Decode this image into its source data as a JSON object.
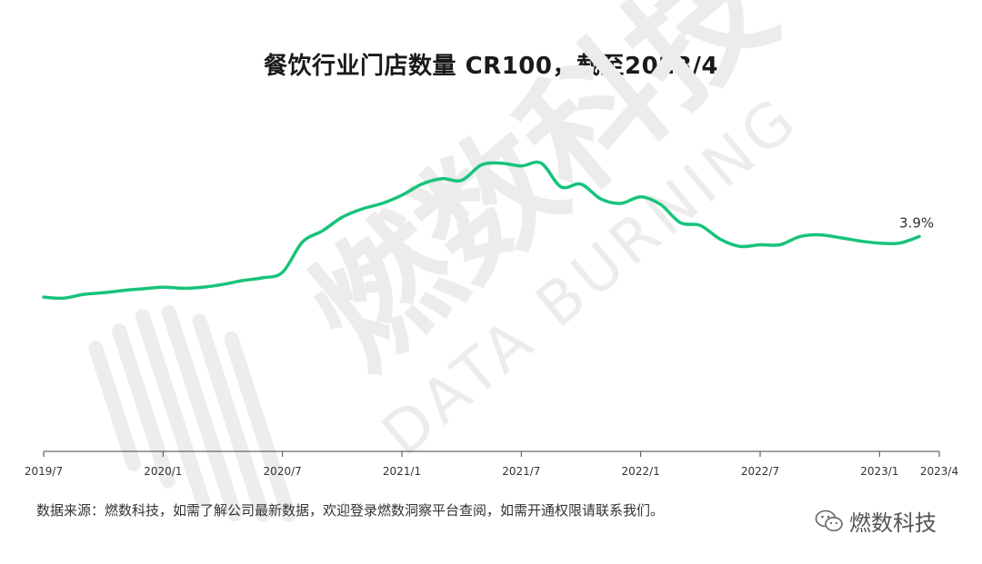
{
  "title": "餐饮行业门店数量 CR100，截至2023/4",
  "source_note": "数据来源：燃数科技，如需了解公司最新数据，欢迎登录燃数洞察平台查阅，如需开通权限请联系我们。",
  "brand": "燃数科技",
  "watermark": {
    "cn": "燃数科技",
    "en": "DATA BURNING"
  },
  "colors": {
    "line": "#17c37b",
    "axis": "#333333",
    "text": "#333333",
    "watermark": "#ececec"
  },
  "chart_data": {
    "type": "line",
    "title": "餐饮行业门店数量 CR100，截至2023/4",
    "xlabel": "",
    "ylabel": "",
    "y_unit": "%",
    "x_ticks": [
      "2019/7",
      "2020/1",
      "2020/7",
      "2021/1",
      "2021/7",
      "2022/1",
      "2022/7",
      "2023/1",
      "2023/4"
    ],
    "grid": false,
    "ylim": [
      0,
      6.0
    ],
    "series": [
      {
        "name": "",
        "x": [
          "2019/7",
          "2019/8",
          "2019/9",
          "2019/10",
          "2019/11",
          "2019/12",
          "2020/1",
          "2020/2",
          "2020/3",
          "2020/4",
          "2020/5",
          "2020/6",
          "2020/7",
          "2020/8",
          "2020/9",
          "2020/10",
          "2020/11",
          "2020/12",
          "2021/1",
          "2021/2",
          "2021/3",
          "2021/4",
          "2021/5",
          "2021/6",
          "2021/7",
          "2021/8",
          "2021/9",
          "2021/10",
          "2021/11",
          "2021/12",
          "2022/1",
          "2022/2",
          "2022/3",
          "2022/4",
          "2022/5",
          "2022/6",
          "2022/7",
          "2022/8",
          "2022/9",
          "2022/10",
          "2022/11",
          "2022/12",
          "2023/1",
          "2023/2",
          "2023/3"
        ],
        "values": [
          2.8,
          2.78,
          2.85,
          2.88,
          2.92,
          2.95,
          2.98,
          2.96,
          2.98,
          3.03,
          3.1,
          3.15,
          3.25,
          3.8,
          4.0,
          4.25,
          4.4,
          4.5,
          4.65,
          4.85,
          4.95,
          4.92,
          5.2,
          5.23,
          5.18,
          5.23,
          4.8,
          4.85,
          4.58,
          4.5,
          4.62,
          4.48,
          4.15,
          4.1,
          3.85,
          3.72,
          3.75,
          3.75,
          3.9,
          3.93,
          3.88,
          3.82,
          3.78,
          3.78,
          3.9
        ],
        "end_label": "3.9%"
      }
    ]
  }
}
